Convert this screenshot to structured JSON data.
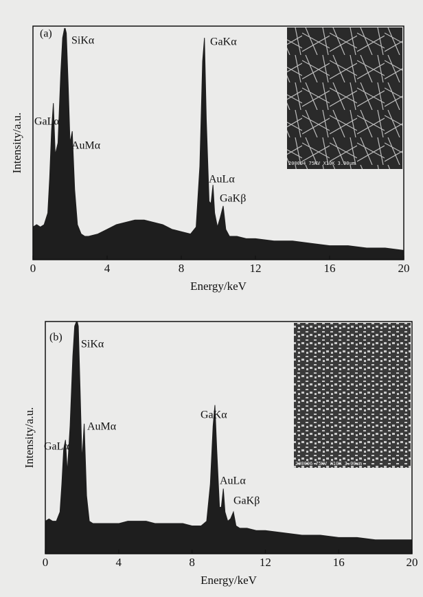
{
  "chart_data": [
    {
      "type": "area",
      "label": "(a)",
      "xlabel": "Energy/keV",
      "ylabel": "Intensity/a.u.",
      "xlim": [
        0,
        20
      ],
      "xticks": [
        0,
        4,
        8,
        12,
        16,
        20
      ],
      "ylim": [
        0,
        100
      ],
      "color": "#1e1e1e",
      "annotations": [
        "SiKα",
        "GaLα",
        "AuMα",
        "GaKα",
        "AuLα",
        "GaKβ"
      ],
      "inset_caption": "200004 75KV X10K 3.00um",
      "x": [
        0,
        0.2,
        0.4,
        0.6,
        0.8,
        0.9,
        1.0,
        1.1,
        1.2,
        1.35,
        1.5,
        1.6,
        1.7,
        1.74,
        1.8,
        1.9,
        2.0,
        2.12,
        2.25,
        2.4,
        2.6,
        2.8,
        3.0,
        3.5,
        4.0,
        4.5,
        5.0,
        5.5,
        6.0,
        6.5,
        7.0,
        7.5,
        8.0,
        8.5,
        8.8,
        9.0,
        9.15,
        9.25,
        9.35,
        9.5,
        9.6,
        9.71,
        9.8,
        9.95,
        10.1,
        10.26,
        10.4,
        10.6,
        11.0,
        11.5,
        12.0,
        13.0,
        14.0,
        15.0,
        16.0,
        17.0,
        18.0,
        19.0,
        20.0
      ],
      "values": [
        14,
        15,
        14,
        15,
        20,
        35,
        55,
        67,
        45,
        50,
        80,
        95,
        99,
        99,
        97,
        75,
        50,
        55,
        30,
        15,
        11,
        10,
        10,
        11,
        13,
        15,
        16,
        17,
        17,
        16,
        15,
        13,
        12,
        11,
        14,
        40,
        85,
        95,
        60,
        25,
        24,
        32,
        20,
        14,
        18,
        23,
        13,
        10,
        10,
        9,
        9,
        8,
        8,
        7,
        6,
        6,
        5,
        5,
        4
      ]
    },
    {
      "type": "area",
      "label": "(b)",
      "xlabel": "Energy/keV",
      "ylabel": "Intensity/a.u.",
      "xlim": [
        0,
        20
      ],
      "xticks": [
        0,
        4,
        8,
        12,
        16,
        20
      ],
      "ylim": [
        0,
        100
      ],
      "color": "#1e1e1e",
      "annotations": [
        "SiKα",
        "GaLα",
        "AuMα",
        "GaKα",
        "AuLα",
        "GaKβ"
      ],
      "inset_caption": "200006 75KV X10K 3.00um",
      "x": [
        0,
        0.2,
        0.4,
        0.6,
        0.8,
        0.9,
        1.0,
        1.1,
        1.2,
        1.35,
        1.5,
        1.6,
        1.7,
        1.74,
        1.8,
        1.9,
        2.0,
        2.12,
        2.25,
        2.4,
        2.6,
        2.8,
        3.0,
        3.5,
        4.0,
        4.5,
        5.0,
        5.5,
        6.0,
        6.5,
        7.0,
        7.5,
        8.0,
        8.5,
        8.8,
        9.0,
        9.15,
        9.25,
        9.35,
        9.5,
        9.6,
        9.71,
        9.8,
        9.95,
        10.1,
        10.26,
        10.4,
        10.6,
        11.0,
        11.5,
        12.0,
        13.0,
        14.0,
        15.0,
        16.0,
        17.0,
        18.0,
        19.0,
        20.0
      ],
      "values": [
        14,
        15,
        14,
        14,
        18,
        30,
        45,
        49,
        35,
        55,
        85,
        98,
        100,
        100,
        98,
        70,
        40,
        56,
        25,
        14,
        13,
        13,
        13,
        13,
        13,
        14,
        14,
        14,
        13,
        13,
        13,
        13,
        12,
        12,
        14,
        30,
        55,
        64,
        45,
        20,
        20,
        28,
        18,
        14,
        15,
        18,
        12,
        11,
        11,
        10,
        10,
        9,
        8,
        8,
        7,
        7,
        6,
        6,
        6
      ]
    }
  ]
}
